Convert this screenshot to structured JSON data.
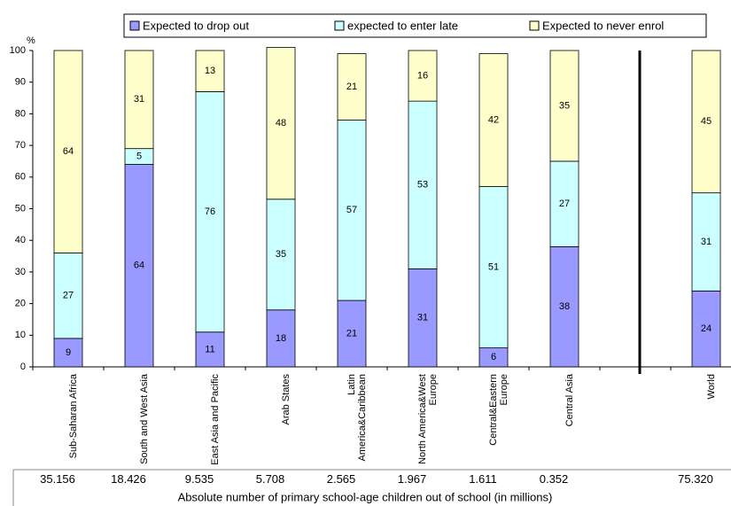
{
  "chart_data": {
    "type": "stacked_bar",
    "y_unit_label": "%",
    "categories": [
      "Sub-Saharan Africa",
      "South and West Asia",
      "East Asia and Pacific",
      "Arab States",
      "Latin\nAmerica&Caribbean",
      "North America&West\nEurope",
      "Central&Eastern\nEurope",
      "Central Asia",
      null,
      "World"
    ],
    "series": [
      {
        "name": "Expected to drop out",
        "color": "#9999ff",
        "values": [
          9,
          64,
          11,
          18,
          21,
          31,
          6,
          38,
          null,
          24
        ]
      },
      {
        "name": "expected to enter late",
        "color": "#ccffff",
        "values": [
          27,
          5,
          76,
          35,
          57,
          53,
          51,
          27,
          null,
          31
        ]
      },
      {
        "name": "Expected to never enrol",
        "color": "#ffffcc",
        "values": [
          64,
          31,
          13,
          48,
          21,
          16,
          42,
          35,
          null,
          45
        ]
      }
    ],
    "ylim": [
      0,
      100
    ],
    "yticks": [
      0,
      10,
      20,
      30,
      40,
      50,
      60,
      70,
      80,
      90,
      100
    ],
    "grid": false,
    "table": {
      "values": [
        "35.156",
        "18.426",
        "9.535",
        "5.708",
        "2.565",
        "1.967",
        "1.611",
        "0.352",
        null,
        "75.320"
      ],
      "caption": "Absolute number of primary school-age children out of school (in millions)"
    }
  }
}
